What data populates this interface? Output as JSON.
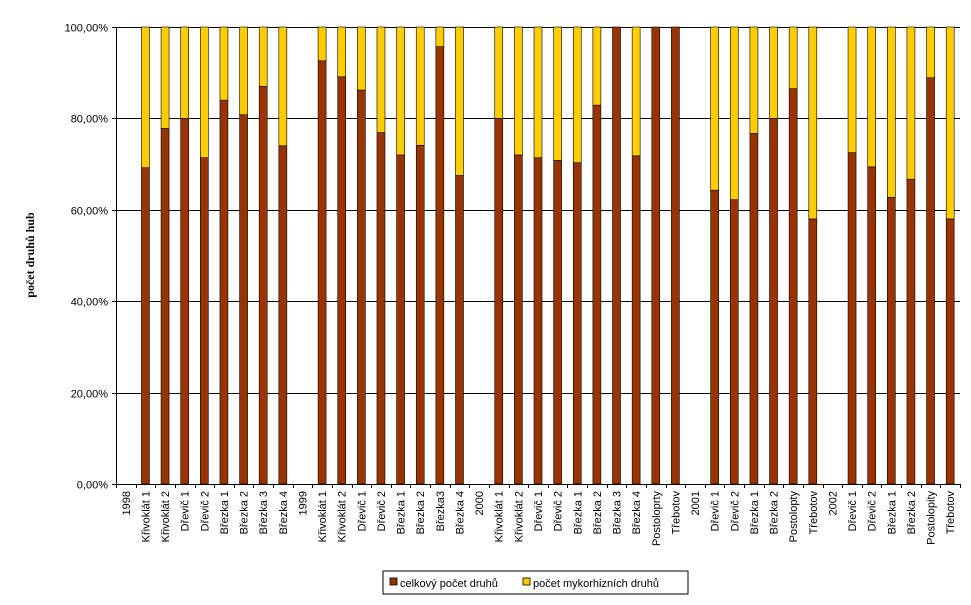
{
  "chart_data": {
    "type": "bar",
    "stacked": "percent",
    "ylabel": "počet druhů hub",
    "xlabel": "",
    "ylim": [
      0,
      100
    ],
    "yticks": [
      "0,00%",
      "20,00%",
      "40,00%",
      "60,00%",
      "80,00%",
      "100,00%"
    ],
    "grid": true,
    "legend_position": "bottom",
    "categories": [
      "1998",
      "Křivoklát 1",
      "Křivoklát 2",
      "Dřevič 1",
      "Dřevič 2",
      "Březka 1",
      "Březka 2",
      "Březka 3",
      "Březka 4",
      "1999",
      "Křivoklát 1",
      "Křivoklát 2",
      "Dřevič 1",
      "Dřevič 2",
      "Březka 1",
      "Březka 2",
      "Březka3",
      "Březka 4",
      "2000",
      "Křivoklát 1",
      "Křivoklát 2",
      "Dřevič 1",
      "Dřevič 2",
      "Březka 1",
      "Březka 2",
      "Březka 3",
      "Březka 4",
      "Postoloprty",
      "Třebotov",
      "2001",
      "Dřevič 1",
      "Dřevič 2",
      "Březka 1",
      "Březka 2",
      "Postolopty",
      "Třebotov",
      "2002",
      "Dřevič 1",
      "Dřevič 2",
      "Březka 1",
      "Březka 2",
      "Postolopity",
      "Třebotov"
    ],
    "series": [
      {
        "name": "celkový počet druhů",
        "color": "#993300",
        "values": [
          null,
          69.2,
          77.8,
          80.0,
          71.4,
          84.0,
          80.8,
          87.0,
          74.0,
          null,
          92.6,
          89.1,
          86.2,
          76.9,
          72.0,
          74.1,
          95.7,
          67.5,
          null,
          80.0,
          72.0,
          71.4,
          70.8,
          70.3,
          82.9,
          100.0,
          71.8,
          100.0,
          100.0,
          null,
          64.3,
          62.2,
          76.7,
          80.0,
          86.5,
          58.0,
          null,
          72.5,
          69.4,
          62.7,
          66.7,
          88.9,
          58.0
        ]
      },
      {
        "name": "počet mykorhizních druhů",
        "color": "#FFCC00",
        "values": [
          null,
          30.8,
          22.2,
          20.0,
          28.6,
          16.0,
          19.2,
          13.0,
          26.0,
          null,
          7.4,
          10.9,
          13.8,
          23.1,
          28.0,
          25.9,
          4.3,
          32.5,
          null,
          20.0,
          28.0,
          28.6,
          29.2,
          29.7,
          17.1,
          0.0,
          28.2,
          0.0,
          0.0,
          null,
          35.7,
          37.8,
          23.3,
          20.0,
          13.5,
          42.0,
          null,
          27.5,
          30.6,
          37.3,
          33.3,
          11.1,
          42.0
        ]
      }
    ]
  }
}
